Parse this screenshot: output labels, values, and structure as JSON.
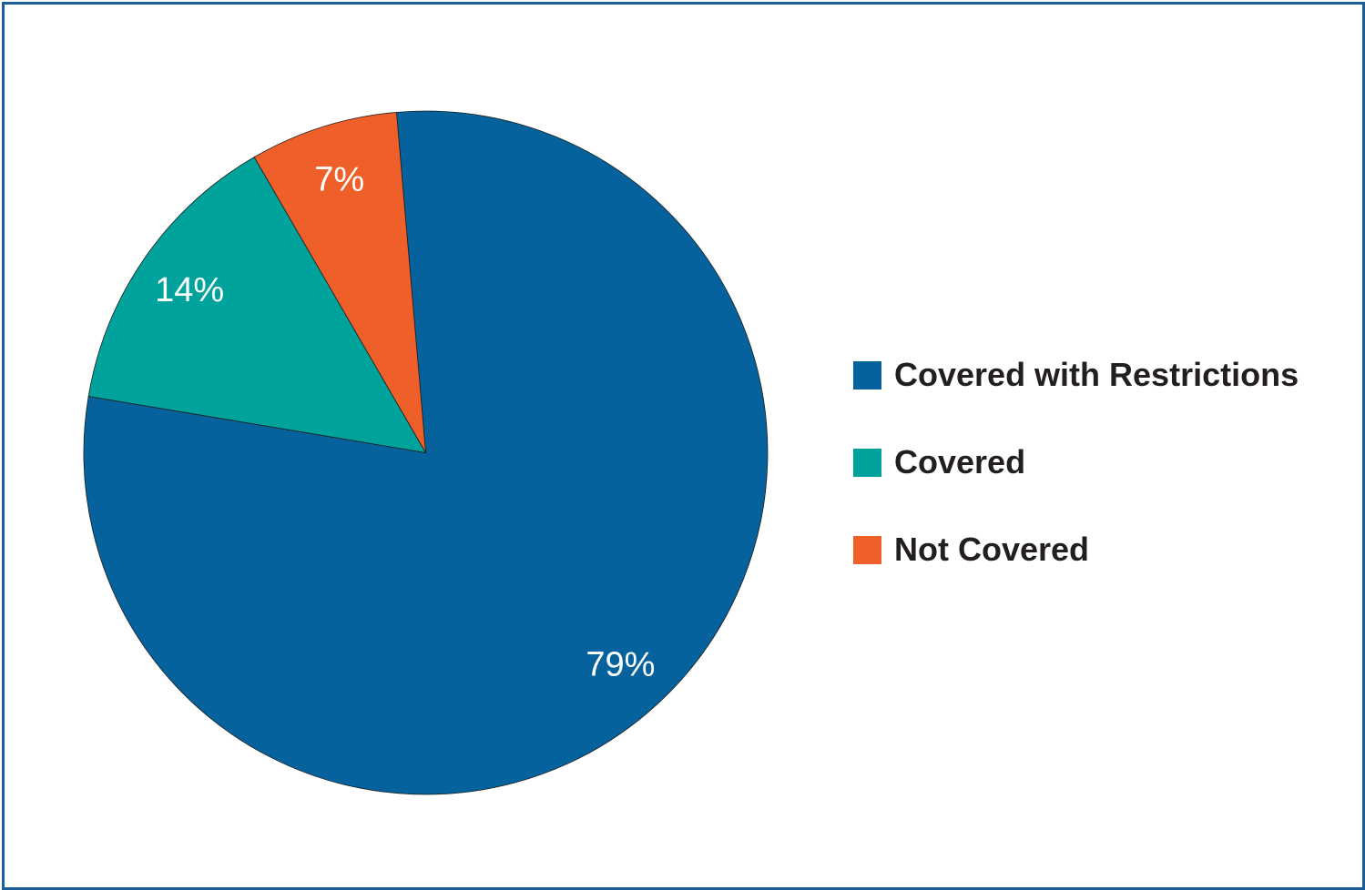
{
  "chart_data": {
    "type": "pie",
    "title": "",
    "start_angle_deg": -4.9,
    "direction": "clockwise",
    "slices": [
      {
        "label": "Covered with Restrictions",
        "value": 79,
        "display": "79%",
        "color": "#05629c"
      },
      {
        "label": "Covered",
        "value": 14,
        "display": "14%",
        "color": "#00a39b"
      },
      {
        "label": "Not Covered",
        "value": 7,
        "display": "7%",
        "color": "#ee5f2a"
      }
    ],
    "legend_position": "right"
  }
}
